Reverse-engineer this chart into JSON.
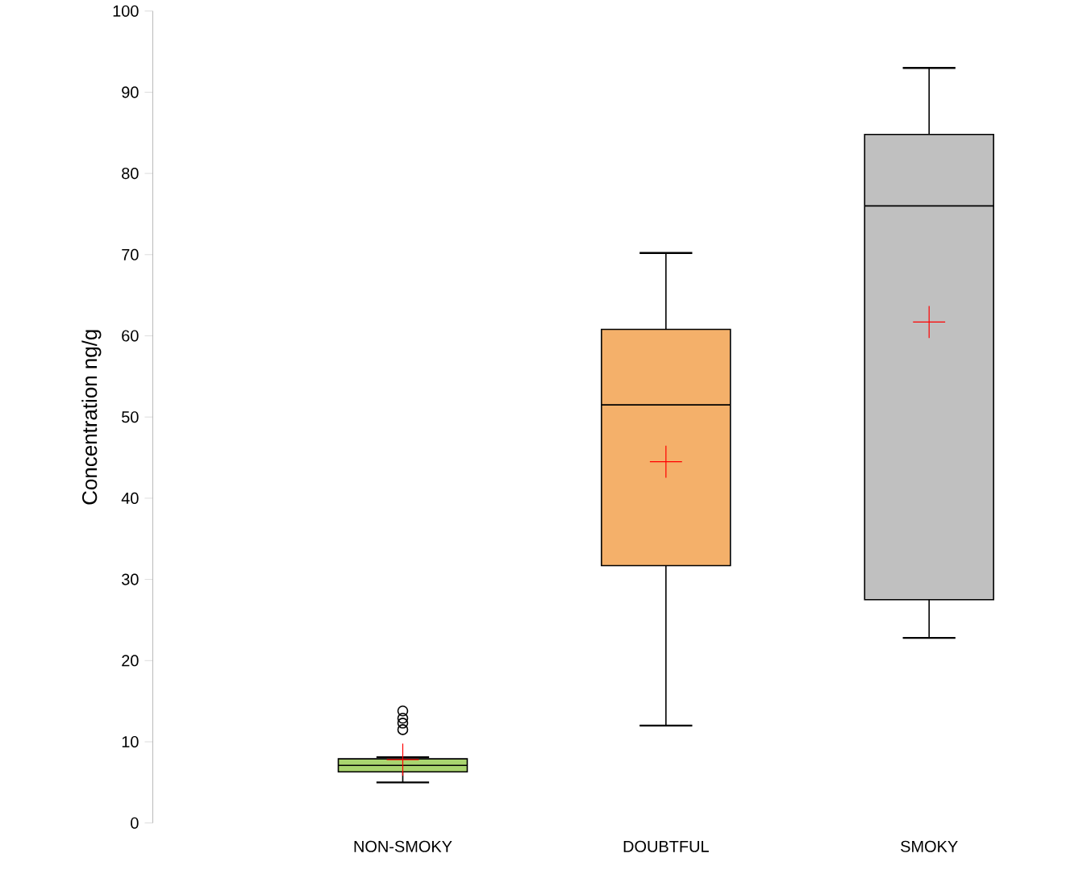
{
  "chart_data": {
    "type": "box",
    "ylabel": "Concentration ng/g",
    "categories": [
      "NON-SMOKY",
      "DOUBTFUL",
      "SMOKY"
    ],
    "boxes": [
      {
        "low": 5,
        "q1": 6.3,
        "median": 7.1,
        "q3": 7.9,
        "high": 8.1,
        "mean": 7.8,
        "outliers": [
          11.5,
          12.3,
          12.9,
          13.8
        ]
      },
      {
        "low": 12,
        "q1": 31.7,
        "median": 51.5,
        "q3": 60.8,
        "high": 70.2,
        "mean": 44.5
      },
      {
        "low": 22.8,
        "q1": 27.5,
        "median": 76,
        "q3": 84.8,
        "high": 93,
        "mean": 61.7
      }
    ],
    "colors": [
      "#a9d46f",
      "#f4b06a",
      "#c0c0c0"
    ],
    "ylim": [
      0,
      100
    ],
    "yticks": [
      0,
      10,
      20,
      30,
      40,
      50,
      60,
      70,
      80,
      90,
      100
    ]
  }
}
